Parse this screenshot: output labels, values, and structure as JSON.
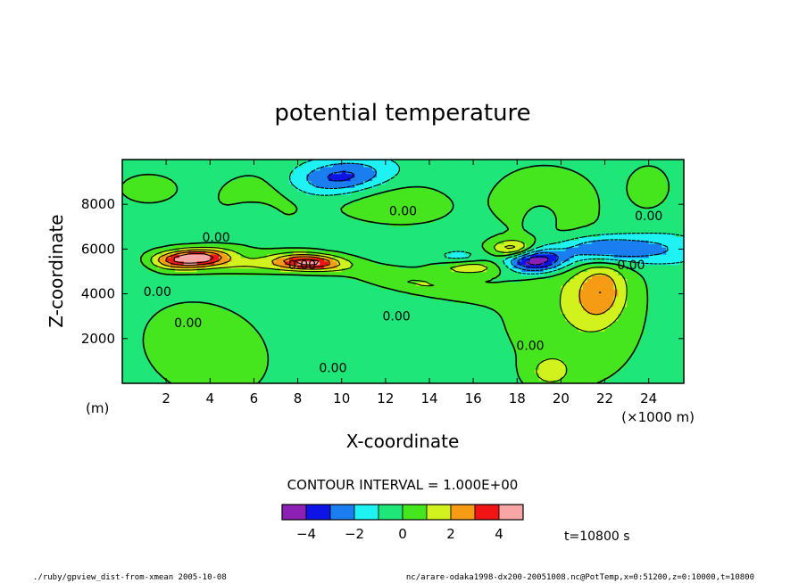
{
  "chart_data": {
    "type": "heatmap",
    "title": "potential temperature",
    "xlabel": "X-coordinate",
    "ylabel": "Z-coordinate",
    "x_unit_label": "(m)",
    "x_scale_label": "(×1000 m)",
    "xlim": [
      0,
      25.6
    ],
    "ylim": [
      0,
      10000
    ],
    "x_ticks": [
      2,
      4,
      6,
      8,
      10,
      12,
      14,
      16,
      18,
      20,
      22,
      24
    ],
    "x_tick_labels": [
      "2",
      "4",
      "6",
      "8",
      "10",
      "12",
      "14",
      "16",
      "18",
      "20",
      "22",
      "24"
    ],
    "y_ticks": [
      2000,
      4000,
      6000,
      8000
    ],
    "y_tick_labels": [
      "2000",
      "4000",
      "6000",
      "8000"
    ],
    "contour_interval_text": "CONTOUR INTERVAL = 1.000E+00",
    "colorbar": {
      "colors": [
        "#8c1fb4",
        "#0f14e6",
        "#1a7ef0",
        "#1ef2f2",
        "#1ee678",
        "#46e61e",
        "#d2f21e",
        "#f59b14",
        "#f01414",
        "#f7a5a5"
      ],
      "tick_values": [
        -4,
        -2,
        0,
        2,
        4
      ],
      "tick_labels": [
        "−4",
        "−2",
        "0",
        "2",
        "4"
      ],
      "bins": [
        [
          -5,
          -4
        ],
        [
          -4,
          -3
        ],
        [
          -3,
          -2
        ],
        [
          -2,
          -1
        ],
        [
          -1,
          0
        ],
        [
          0,
          1
        ],
        [
          1,
          2
        ],
        [
          2,
          3
        ],
        [
          3,
          4
        ],
        [
          4,
          5
        ]
      ]
    },
    "contour_labels": [
      {
        "x": 11.4,
        "z": 5700,
        "text": "0.00",
        "dx": -175,
        "dy": -21
      },
      {
        "x": 12.8,
        "z": 7700,
        "text": "0.00",
        "dx": 0,
        "dy": 0
      },
      {
        "x": 24,
        "z": 7500,
        "text": "0.00",
        "dx": 0,
        "dy": 0
      },
      {
        "x": 8.2,
        "z": 5300,
        "text": "0.00",
        "dx": 0,
        "dy": 0
      },
      {
        "x": 1.6,
        "z": 4100,
        "text": "0.00",
        "dx": 0,
        "dy": 0
      },
      {
        "x": 3,
        "z": 2700,
        "text": "0.00",
        "dx": 0,
        "dy": 0
      },
      {
        "x": 9.6,
        "z": 700,
        "text": "0.00",
        "dx": 0,
        "dy": 0
      },
      {
        "x": 12.5,
        "z": 3000,
        "text": "0.00",
        "dx": 0,
        "dy": 0
      },
      {
        "x": 18.6,
        "z": 1700,
        "text": "0.00",
        "dx": 0,
        "dy": 0
      },
      {
        "x": 23.2,
        "z": 5300,
        "text": "0.00",
        "dx": 0,
        "dy": 0
      }
    ],
    "anomalies": [
      {
        "cx": 10,
        "cz": 9200,
        "sx": 1.6,
        "sz": 550,
        "amp": -3.2,
        "rot": -0.08
      },
      {
        "cx": 3.3,
        "cz": 5600,
        "sx": 1.1,
        "sz": 260,
        "amp": 4.2,
        "rot": -0.05
      },
      {
        "cx": 2.2,
        "cz": 5500,
        "sx": 2,
        "sz": 350,
        "amp": 1.6,
        "rot": -0.1
      },
      {
        "cx": 8.5,
        "cz": 5450,
        "sx": 1.1,
        "sz": 260,
        "amp": 4.1,
        "rot": 0.05
      },
      {
        "cx": 6.5,
        "cz": 5300,
        "sx": 2.2,
        "sz": 260,
        "amp": 1.4,
        "rot": 0
      },
      {
        "cx": 0.6,
        "cz": 5300,
        "sx": 0.8,
        "sz": 350,
        "amp": -1.4,
        "rot": 0
      },
      {
        "cx": 18.8,
        "cz": 5500,
        "sx": 1,
        "sz": 380,
        "amp": -5,
        "rot": 0
      },
      {
        "cx": 17.8,
        "cz": 6000,
        "sx": 0.7,
        "sz": 280,
        "amp": 3.3,
        "rot": 0
      },
      {
        "cx": 21.8,
        "cz": 6000,
        "sx": 1.4,
        "sz": 420,
        "amp": -3.2,
        "rot": 0
      },
      {
        "cx": 24.6,
        "cz": 6000,
        "sx": 1.4,
        "sz": 500,
        "amp": -1.4,
        "rot": 0
      },
      {
        "cx": 21.8,
        "cz": 4100,
        "sx": 0.8,
        "sz": 950,
        "amp": 2.4,
        "rot": 0.25
      },
      {
        "cx": 15.8,
        "cz": 5200,
        "sx": 1.1,
        "sz": 250,
        "amp": 2.2,
        "rot": 0
      },
      {
        "cx": 13.5,
        "cz": 4500,
        "sx": 2.2,
        "sz": 350,
        "amp": 1.5,
        "rot": 0.18
      },
      {
        "cx": 15.4,
        "cz": 5600,
        "sx": 0.8,
        "sz": 260,
        "amp": -1.3,
        "rot": 0
      },
      {
        "cx": 3.8,
        "cz": 1500,
        "sx": 2,
        "sz": 1400,
        "amp": 1.3,
        "rot": 0.3
      },
      {
        "cx": 20.5,
        "cz": 3500,
        "sx": 2.2,
        "sz": 2500,
        "amp": 1.3,
        "rot": -0.35
      },
      {
        "cx": 19.5,
        "cz": 500,
        "sx": 0.7,
        "sz": 500,
        "amp": 1.5,
        "rot": 0
      },
      {
        "cx": 6.2,
        "cz": 8200,
        "sx": 1.4,
        "sz": 900,
        "amp": 1.1,
        "rot": 0
      },
      {
        "cx": 12,
        "cz": 8200,
        "sx": 2.2,
        "sz": 800,
        "amp": 1.1,
        "rot": 0.1
      },
      {
        "cx": 24,
        "cz": 8800,
        "sx": 0.6,
        "sz": 600,
        "amp": 1.4,
        "rot": 0
      },
      {
        "cx": 19.2,
        "cz": 8400,
        "sx": 1.5,
        "sz": 900,
        "amp": 1.2,
        "rot": 0
      },
      {
        "cx": 1.2,
        "cz": 8700,
        "sx": 0.9,
        "sz": 450,
        "amp": 1.2,
        "rot": 0
      },
      {
        "cx": 6,
        "cz": 7600,
        "sx": 0.7,
        "sz": 400,
        "amp": -1.3,
        "rot": 0
      },
      {
        "cx": 19.1,
        "cz": 7500,
        "sx": 0.5,
        "sz": 450,
        "amp": -1.3,
        "rot": 0
      }
    ]
  },
  "footer": {
    "left": "./ruby/gpview_dist-from-xmean  2005-10-08",
    "right": "nc/arare-odaka1998-dx200-20051008.nc@PotTemp,x=0:51200,z=0:10000,t=10800"
  },
  "time_label": "t=10800 s"
}
